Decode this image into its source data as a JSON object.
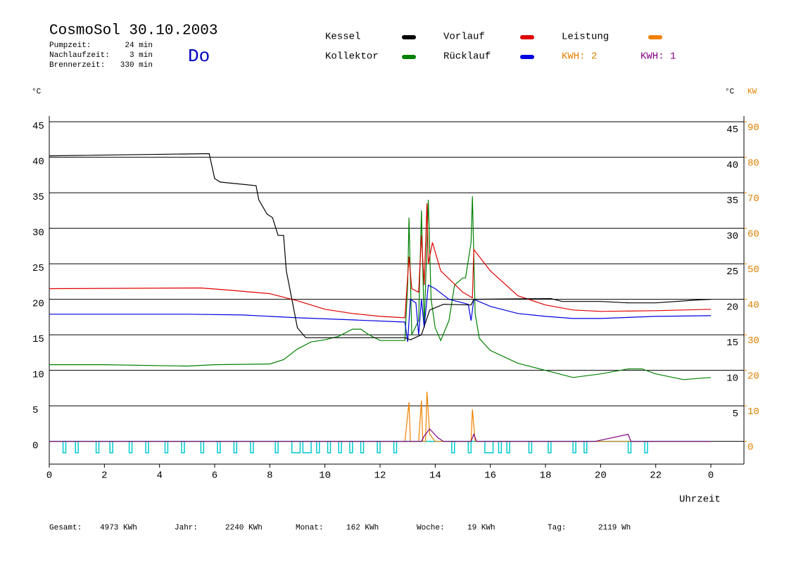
{
  "chart_data": {
    "type": "line",
    "title": "CosmoSol 30.10.2003",
    "day": "Do",
    "info": [
      {
        "label": "Pumpzeit:",
        "value": "24 min"
      },
      {
        "label": "Nachlaufzeit:",
        "value": "3 min"
      },
      {
        "label": "Brennerzeit:",
        "value": "330 min"
      }
    ],
    "y_unit": "°C",
    "y2_unit": "°C",
    "y2_unit2": "KW",
    "xlabel": "Uhrzeit",
    "xlim": [
      0,
      25.2
    ],
    "xticks": [
      0,
      2,
      4,
      6,
      8,
      10,
      12,
      14,
      16,
      18,
      20,
      22,
      {
        "value": 24,
        "label": "0"
      }
    ],
    "ylim": [
      -3.2,
      45.8
    ],
    "yticks": [
      0,
      5,
      10,
      15,
      20,
      25,
      30,
      35,
      40,
      45
    ],
    "right_yticks": [
      5,
      10,
      15,
      20,
      25,
      30,
      35,
      40,
      45
    ],
    "y2lim": [
      -6.4,
      91.6
    ],
    "y2ticks": [
      0,
      10,
      20,
      30,
      40,
      50,
      60,
      70,
      80,
      90
    ],
    "grid": true,
    "series": [
      {
        "name": "Kessel",
        "color": "#000000",
        "x": [
          0,
          5.8,
          6.0,
          6.2,
          7.5,
          7.6,
          7.9,
          8.1,
          8.3,
          8.5,
          8.6,
          8.8,
          9.0,
          9.3,
          12.9,
          13.1,
          13.5,
          13.8,
          14.3,
          15.3,
          15.4,
          18.2,
          18.6,
          20.0,
          21.0,
          22.0,
          23.5,
          24
        ],
        "values": [
          40.2,
          40.5,
          37,
          36.5,
          36,
          34,
          32,
          31.5,
          29,
          29,
          24,
          20,
          16,
          14.6,
          14.6,
          14.3,
          15,
          18.5,
          19.3,
          19.2,
          20,
          20.1,
          19.7,
          19.7,
          19.5,
          19.5,
          19.9,
          20
        ]
      },
      {
        "name": "Vorlauf",
        "color": "#e00000",
        "x": [
          0,
          5.5,
          6.5,
          8,
          9,
          10,
          11,
          12,
          12.9,
          13.05,
          13.15,
          13.4,
          13.5,
          13.6,
          13.7,
          13.75,
          13.9,
          14.2,
          15.0,
          15.35,
          15.4,
          16,
          17,
          18,
          19,
          20,
          22,
          24
        ],
        "values": [
          21.5,
          21.6,
          21.3,
          20.8,
          19.8,
          18.6,
          18,
          17.6,
          17.4,
          26,
          21.5,
          21,
          29,
          22,
          33.5,
          25,
          28,
          24,
          21,
          20.2,
          27,
          24,
          20.5,
          19.2,
          18.5,
          18.3,
          18.4,
          18.6
        ]
      },
      {
        "name": "Leistung",
        "color": "#f08000",
        "axis": "y2",
        "x": [
          0,
          12.9,
          13.05,
          13.1,
          13.4,
          13.5,
          13.55,
          13.65,
          13.7,
          13.8,
          14.0,
          15.3,
          15.35,
          15.45,
          24
        ],
        "values": [
          0,
          0,
          11,
          0,
          0,
          11.5,
          0,
          0,
          14,
          2,
          0,
          0,
          9,
          0,
          0
        ]
      },
      {
        "name": "Kollektor",
        "color": "#008000",
        "x": [
          0,
          2,
          5,
          6,
          8,
          8.5,
          9,
          9.5,
          10,
          10.5,
          11,
          11.3,
          11.6,
          12,
          12.9,
          13.0,
          13.05,
          13.15,
          13.4,
          13.5,
          13.6,
          13.75,
          13.85,
          14.0,
          14.2,
          14.5,
          14.7,
          15.0,
          15.1,
          15.3,
          15.35,
          15.45,
          15.6,
          16,
          17,
          18,
          19,
          20,
          21,
          21.5,
          22,
          23,
          24
        ],
        "values": [
          10.8,
          10.8,
          10.6,
          10.8,
          10.9,
          11.5,
          13,
          14,
          14.3,
          14.8,
          15.8,
          15.8,
          15,
          14.2,
          14.2,
          22,
          31.5,
          15,
          17,
          32.5,
          16,
          34,
          20,
          16,
          14.2,
          17,
          22,
          23,
          23,
          28,
          34.5,
          18,
          14.5,
          12.8,
          11,
          10,
          9,
          9.5,
          10.2,
          10.2,
          9.5,
          8.7,
          9
        ]
      },
      {
        "name": "Rücklauf",
        "color": "#0000e0",
        "x": [
          0,
          5,
          7,
          9,
          11,
          12.9,
          13.0,
          13.1,
          13.3,
          13.4,
          13.5,
          13.6,
          13.75,
          14.0,
          14.5,
          15.2,
          15.3,
          15.4,
          16,
          17,
          18,
          19,
          20,
          22,
          24
        ],
        "values": [
          17.9,
          17.9,
          17.8,
          17.4,
          17.1,
          16.8,
          14,
          20,
          19.5,
          15,
          20,
          16,
          22,
          21.5,
          20,
          19.3,
          17,
          20,
          19,
          18,
          17.6,
          17.3,
          17.3,
          17.6,
          17.7
        ]
      },
      {
        "color": "#800080",
        "axis": "y2",
        "x": [
          0,
          13.5,
          13.6,
          13.8,
          14.1,
          14.3,
          15.3,
          15.4,
          15.5,
          19.8,
          21,
          21.1,
          24
        ],
        "values": [
          0,
          0,
          1.5,
          3.5,
          1,
          0,
          0,
          2,
          0,
          0,
          2,
          0,
          0
        ]
      }
    ],
    "kwh_labels": [
      {
        "text": "KWH: 2",
        "color": "#e08000"
      },
      {
        "text": "KWH: 1",
        "color": "#800080"
      }
    ],
    "pump_color": "#00c8d0",
    "pump_level": -1.6,
    "pump_pulses": [
      [
        0.5,
        0.6
      ],
      [
        0.95,
        1.05
      ],
      [
        1.7,
        1.8
      ],
      [
        2.2,
        2.3
      ],
      [
        2.9,
        3.0
      ],
      [
        3.5,
        3.6
      ],
      [
        4.2,
        4.3
      ],
      [
        4.8,
        4.9
      ],
      [
        5.5,
        5.6
      ],
      [
        6.1,
        6.2
      ],
      [
        6.7,
        6.8
      ],
      [
        7.3,
        7.4
      ],
      [
        8.2,
        8.3
      ],
      [
        8.8,
        9.1
      ],
      [
        9.2,
        9.5
      ],
      [
        9.7,
        9.8
      ],
      [
        10.1,
        10.2
      ],
      [
        10.5,
        10.6
      ],
      [
        10.9,
        11.0
      ],
      [
        11.3,
        11.4
      ],
      [
        11.9,
        12.0
      ],
      [
        12.5,
        12.6
      ],
      [
        14.6,
        14.7
      ],
      [
        15.2,
        15.3
      ],
      [
        15.8,
        16.1
      ],
      [
        16.3,
        16.4
      ],
      [
        16.6,
        16.7
      ],
      [
        17.4,
        17.5
      ],
      [
        18.1,
        18.2
      ],
      [
        19.0,
        19.1
      ],
      [
        19.4,
        19.5
      ],
      [
        21.0,
        21.1
      ],
      [
        21.6,
        21.7
      ]
    ],
    "footer": [
      {
        "label": "Gesamt:",
        "value": "4973 KWh"
      },
      {
        "label": "Jahr:",
        "value": "2240 KWh"
      },
      {
        "label": "Monat:",
        "value": "162 KWh"
      },
      {
        "label": "Woche:",
        "value": "19 KWh"
      },
      {
        "label": "Tag:",
        "value": "2119 Wh"
      }
    ]
  }
}
